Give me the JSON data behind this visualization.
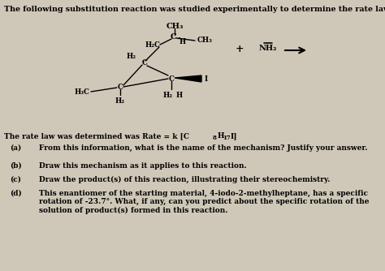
{
  "bg_color": "#cfc8b8",
  "title": "The following substitution reaction was studied experimentally to determine the rate law",
  "rate_law_pre": "The rate law was determined was Rate = k [C",
  "rate_law_sub1": "8",
  "rate_law_mid": "H",
  "rate_law_sub2": "17",
  "rate_law_post": "I]",
  "questions": [
    [
      "(a)",
      "From this information, what is the name of the mechanism? Justify your answer."
    ],
    [
      "(b)",
      "Draw this mechanism as it applies to this reaction."
    ],
    [
      "(c)",
      "Draw the product(s) of this reaction, illustrating their stereochemistry."
    ],
    [
      "(d)",
      "This enantiomer of the starting material, 4-iodo-2-methylheptane, has a specific rotation of -23.7°. What, if any, can you predict about the specific rotation of the solution of product(s) formed in this reaction."
    ]
  ],
  "title_fs": 6.8,
  "body_fs": 6.5,
  "chem_fs": 7.0,
  "chem_fs_small": 6.2
}
